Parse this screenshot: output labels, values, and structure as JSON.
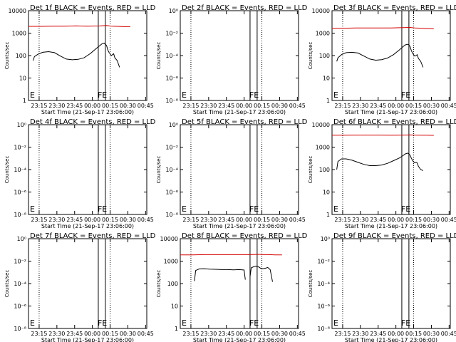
{
  "figure": {
    "background": "#ffffff",
    "colors": {
      "events": "#000000",
      "lld": "#d40000",
      "axes": "#000000"
    }
  },
  "chart_data": [
    {
      "type": "line",
      "detector": "1f",
      "title": "Det 1f BLACK = Events, RED = LLD",
      "xlabel": "Start Time (21-Sep-17 23:06:00)",
      "ylabel": "Counts/sec",
      "x_ticks": [
        "23:15",
        "23:30",
        "23:45",
        "00:00",
        "00:15",
        "00:30",
        "00:45"
      ],
      "y_scale": "log",
      "y_ticks": [
        "1",
        "10",
        "100",
        "1000",
        "10000"
      ],
      "markers": [
        "E",
        "FE"
      ],
      "series": [
        {
          "name": "Events",
          "color": "#000000",
          "x": [
            4,
            5,
            8,
            12,
            17,
            22,
            27,
            32,
            37,
            42,
            47,
            52,
            57,
            60,
            62,
            64,
            65,
            66,
            67,
            68,
            69,
            70,
            71,
            72,
            73,
            75,
            77
          ],
          "y": [
            60,
            90,
            115,
            140,
            150,
            135,
            95,
            70,
            65,
            68,
            80,
            120,
            200,
            270,
            330,
            360,
            320,
            280,
            180,
            140,
            120,
            100,
            110,
            120,
            80,
            60,
            30
          ]
        },
        {
          "name": "LLD",
          "color": "#d40000",
          "x": [
            0,
            10,
            20,
            30,
            40,
            50,
            60,
            66,
            70,
            75,
            80,
            86
          ],
          "y": [
            2000,
            2000,
            2050,
            2050,
            2100,
            2050,
            2100,
            2200,
            2050,
            2000,
            1950,
            1950
          ]
        }
      ]
    },
    {
      "type": "line",
      "detector": "2f",
      "title": "Det 2f BLACK = Events, RED = LLD",
      "xlabel": "Start Time (21-Sep-17 23:06:00)",
      "ylabel": "Counts/sec",
      "x_ticks": [
        "23:15",
        "23:30",
        "23:45",
        "00:00",
        "00:15",
        "00:30",
        "00:45"
      ],
      "y_scale": "log",
      "y_ticks": [
        "10⁻⁸",
        "10⁻⁶",
        "10⁻⁴",
        "10⁻²",
        "10⁰"
      ],
      "markers": [
        "E",
        "FE"
      ],
      "series": []
    },
    {
      "type": "line",
      "detector": "3f",
      "title": "Det 3f BLACK = Events, RED = LLD",
      "xlabel": "Start Time (21-Sep-17 23:06:00)",
      "ylabel": "Counts/sec",
      "x_ticks": [
        "23:15",
        "23:30",
        "23:45",
        "00:00",
        "00:15",
        "00:30",
        "00:45"
      ],
      "y_scale": "log",
      "y_ticks": [
        "1",
        "10",
        "100",
        "1000",
        "10000"
      ],
      "markers": [
        "E",
        "FE"
      ],
      "series": [
        {
          "name": "Events",
          "color": "#000000",
          "x": [
            4,
            5,
            8,
            12,
            17,
            22,
            27,
            32,
            37,
            42,
            47,
            52,
            57,
            60,
            62,
            64,
            65,
            66,
            67,
            68,
            69,
            70,
            71,
            72,
            73,
            75,
            77
          ],
          "y": [
            55,
            80,
            110,
            135,
            140,
            130,
            95,
            70,
            62,
            66,
            78,
            110,
            180,
            250,
            300,
            320,
            300,
            250,
            170,
            130,
            110,
            95,
            100,
            110,
            75,
            55,
            30
          ]
        },
        {
          "name": "LLD",
          "color": "#d40000",
          "x": [
            0,
            10,
            20,
            30,
            40,
            50,
            60,
            66,
            70,
            75,
            80,
            86
          ],
          "y": [
            1650,
            1650,
            1700,
            1700,
            1700,
            1700,
            1750,
            1800,
            1700,
            1650,
            1600,
            1550
          ]
        }
      ]
    },
    {
      "type": "line",
      "detector": "4f",
      "title": "Det 4f BLACK = Events, RED = LLD",
      "xlabel": "Start Time (21-Sep-17 23:06:00)",
      "ylabel": "Counts/sec",
      "x_ticks": [
        "23:15",
        "23:30",
        "23:45",
        "00:00",
        "00:15",
        "00:30",
        "00:45"
      ],
      "y_scale": "log",
      "y_ticks": [
        "10⁻⁸",
        "10⁻⁶",
        "10⁻⁴",
        "10⁻²",
        "10⁰"
      ],
      "markers": [
        "E",
        "FE"
      ],
      "series": []
    },
    {
      "type": "line",
      "detector": "5f",
      "title": "Det 5f BLACK = Events, RED = LLD",
      "xlabel": "Start Time (21-Sep-17 23:06:00)",
      "ylabel": "Counts/sec",
      "x_ticks": [
        "23:15",
        "23:30",
        "23:45",
        "00:00",
        "00:15",
        "00:30",
        "00:45"
      ],
      "y_scale": "log",
      "y_ticks": [
        "10⁻⁸",
        "10⁻⁶",
        "10⁻⁴",
        "10⁻²",
        "10⁰"
      ],
      "markers": [
        "E",
        "FE"
      ],
      "series": []
    },
    {
      "type": "line",
      "detector": "6f",
      "title": "Det 6f BLACK = Events, RED = LLD",
      "xlabel": "Start Time (21-Sep-17 23:06:00)",
      "ylabel": "Counts/sec",
      "x_ticks": [
        "23:15",
        "23:30",
        "23:45",
        "00:00",
        "00:15",
        "00:30",
        "00:45"
      ],
      "y_scale": "log",
      "y_ticks": [
        "1",
        "10",
        "100",
        "1000",
        "10000"
      ],
      "markers": [
        "E",
        "FE"
      ],
      "series": [
        {
          "name": "Events",
          "color": "#000000",
          "x": [
            4,
            5,
            8,
            12,
            17,
            22,
            27,
            32,
            37,
            42,
            47,
            52,
            57,
            60,
            62,
            64,
            65,
            66,
            67,
            68,
            69,
            70,
            71,
            72,
            73,
            75,
            77
          ],
          "y": [
            100,
            230,
            300,
            300,
            260,
            210,
            170,
            150,
            150,
            160,
            190,
            250,
            330,
            420,
            500,
            540,
            500,
            430,
            330,
            260,
            220,
            200,
            210,
            200,
            140,
            100,
            90
          ]
        },
        {
          "name": "LLD",
          "color": "#d40000",
          "x": [
            0,
            10,
            20,
            30,
            40,
            50,
            60,
            66,
            70,
            75,
            80,
            86
          ],
          "y": [
            3400,
            3400,
            3450,
            3450,
            3450,
            3400,
            3450,
            3500,
            3450,
            3400,
            3400,
            3350
          ]
        }
      ]
    },
    {
      "type": "line",
      "detector": "7f",
      "title": "Det 7f BLACK = Events, RED = LLD",
      "xlabel": "Start Time (21-Sep-17 23:06:00)",
      "ylabel": "Counts/sec",
      "x_ticks": [
        "23:15",
        "23:30",
        "23:45",
        "00:00",
        "00:15",
        "00:30",
        "00:45"
      ],
      "y_scale": "log",
      "y_ticks": [
        "10⁻⁸",
        "10⁻⁶",
        "10⁻⁴",
        "10⁻²",
        "10⁰"
      ],
      "markers": [
        "E",
        "FE"
      ],
      "series": []
    },
    {
      "type": "line",
      "detector": "8f",
      "title": "Det 8f BLACK = Events, RED = LLD",
      "xlabel": "Start Time (21-Sep-17 23:06:00)",
      "ylabel": "Counts/sec",
      "x_ticks": [
        "23:15",
        "23:30",
        "23:45",
        "00:00",
        "00:15",
        "00:30",
        "00:45"
      ],
      "y_scale": "log",
      "y_ticks": [
        "1",
        "10",
        "100",
        "1000",
        "10000"
      ],
      "markers": [
        "E",
        "FE"
      ],
      "series": [
        {
          "name": "Events",
          "color": "#000000",
          "x": [
            12,
            13,
            16,
            20,
            25,
            30,
            35,
            40,
            45,
            50,
            54,
            55
          ],
          "y": [
            130,
            380,
            450,
            460,
            440,
            430,
            420,
            420,
            410,
            420,
            400,
            150
          ]
        },
        {
          "name": "Events",
          "color": "#000000",
          "x": [
            59,
            60,
            62,
            64,
            66,
            68,
            70,
            72,
            74,
            76,
            78
          ],
          "y": [
            200,
            500,
            560,
            600,
            560,
            480,
            460,
            480,
            520,
            420,
            120
          ]
        },
        {
          "name": "LLD",
          "color": "#d40000",
          "x": [
            0,
            10,
            20,
            30,
            40,
            50,
            60,
            66,
            70,
            75,
            80,
            86
          ],
          "y": [
            1900,
            1900,
            1950,
            1950,
            1950,
            1950,
            1950,
            2000,
            1950,
            1950,
            1900,
            1900
          ]
        }
      ]
    },
    {
      "type": "line",
      "detector": "9f",
      "title": "Det 9f BLACK = Events, RED = LLD",
      "xlabel": "Start Time (21-Sep-17 23:06:00)",
      "ylabel": "Counts/sec",
      "x_ticks": [
        "23:15",
        "23:30",
        "23:45",
        "00:00",
        "00:15",
        "00:30",
        "00:45"
      ],
      "y_scale": "log",
      "y_ticks": [
        "10⁻⁸",
        "10⁻⁶",
        "10⁻⁴",
        "10⁻²",
        "10⁰"
      ],
      "markers": [
        "E",
        "FE"
      ],
      "series": []
    }
  ]
}
